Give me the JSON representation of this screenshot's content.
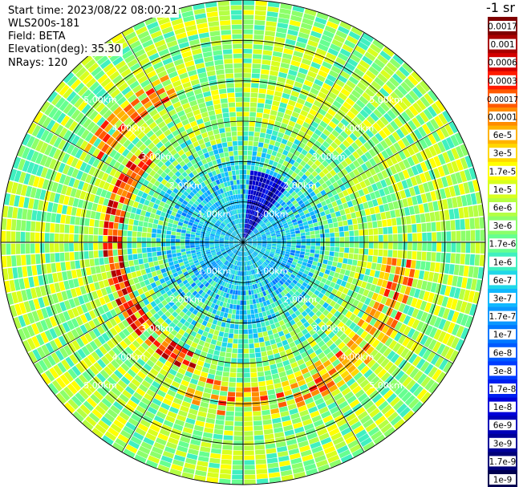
{
  "header": {
    "start_time": "Start time: 2023/08/22 08:00:21",
    "device": "WLS200s-181",
    "field": "Field: BETA",
    "elevation": "Elevation(deg): 35.30",
    "nrays": "NRays: 120"
  },
  "colorbar": {
    "unit_title": "-1 sr",
    "labels": [
      "0.0017",
      "0.001",
      "0.0006",
      "0.0003",
      "0.00017",
      "0.0001",
      "6e-5",
      "3e-5",
      "1.7e-5",
      "1e-5",
      "6e-6",
      "3e-6",
      "1.7e-6",
      "1e-6",
      "6e-7",
      "3e-7",
      "1.7e-7",
      "1e-7",
      "6e-8",
      "3e-8",
      "1.7e-8",
      "1e-8",
      "6e-9",
      "3e-9",
      "1.7e-9",
      "1e-9"
    ],
    "colors": [
      "#7f0000",
      "#a80000",
      "#d40000",
      "#ff1a00",
      "#ff5a00",
      "#ff8c00",
      "#ffb300",
      "#ffd700",
      "#ffff00",
      "#d8ff1e",
      "#b4ff44",
      "#8cff6a",
      "#66ff90",
      "#40f0c0",
      "#20d8e8",
      "#10b8ff",
      "#0a98ff",
      "#0078ff",
      "#005aff",
      "#003cff",
      "#0020f0",
      "#0000d8",
      "#0000b8",
      "#000098",
      "#000078",
      "#000050"
    ]
  },
  "chart_data": {
    "type": "heatmap",
    "projection": "polar-ppi",
    "title": "",
    "field": "BETA",
    "n_rays": 120,
    "elevation_deg": 35.3,
    "range_rings_km": [
      1.0,
      2.0,
      3.0,
      4.0,
      5.0
    ],
    "ring_labels": [
      "1.00km",
      "2.00km",
      "3.00km",
      "4.00km",
      "5.00km"
    ],
    "max_range_km": 6.0,
    "color_scale": "log",
    "value_range": [
      1e-09,
      0.0017
    ],
    "features": [
      {
        "description": "ring of elevated backscatter",
        "range_km": [
          3.0,
          3.5
        ],
        "azimuth_deg": [
          200,
          315
        ],
        "level": "3e-5 to 1e-4"
      },
      {
        "description": "ring of elevated backscatter",
        "range_km": [
          3.5,
          4.3
        ],
        "azimuth_deg": [
          95,
          200
        ],
        "level": "1e-5 to 6e-5"
      },
      {
        "description": "patch of elevated backscatter",
        "range_km": [
          4.0,
          4.6
        ],
        "azimuth_deg": [
          300,
          335
        ],
        "level": "1e-5 to 6e-5"
      },
      {
        "description": "low backscatter sector",
        "range_km": [
          0.1,
          1.8
        ],
        "azimuth_deg": [
          5,
          40
        ],
        "level": "1e-9 to 1e-8"
      },
      {
        "description": "background",
        "range_km": [
          0.0,
          6.0
        ],
        "azimuth_deg": [
          0,
          360
        ],
        "level": "1e-8 to 1e-6"
      }
    ]
  }
}
